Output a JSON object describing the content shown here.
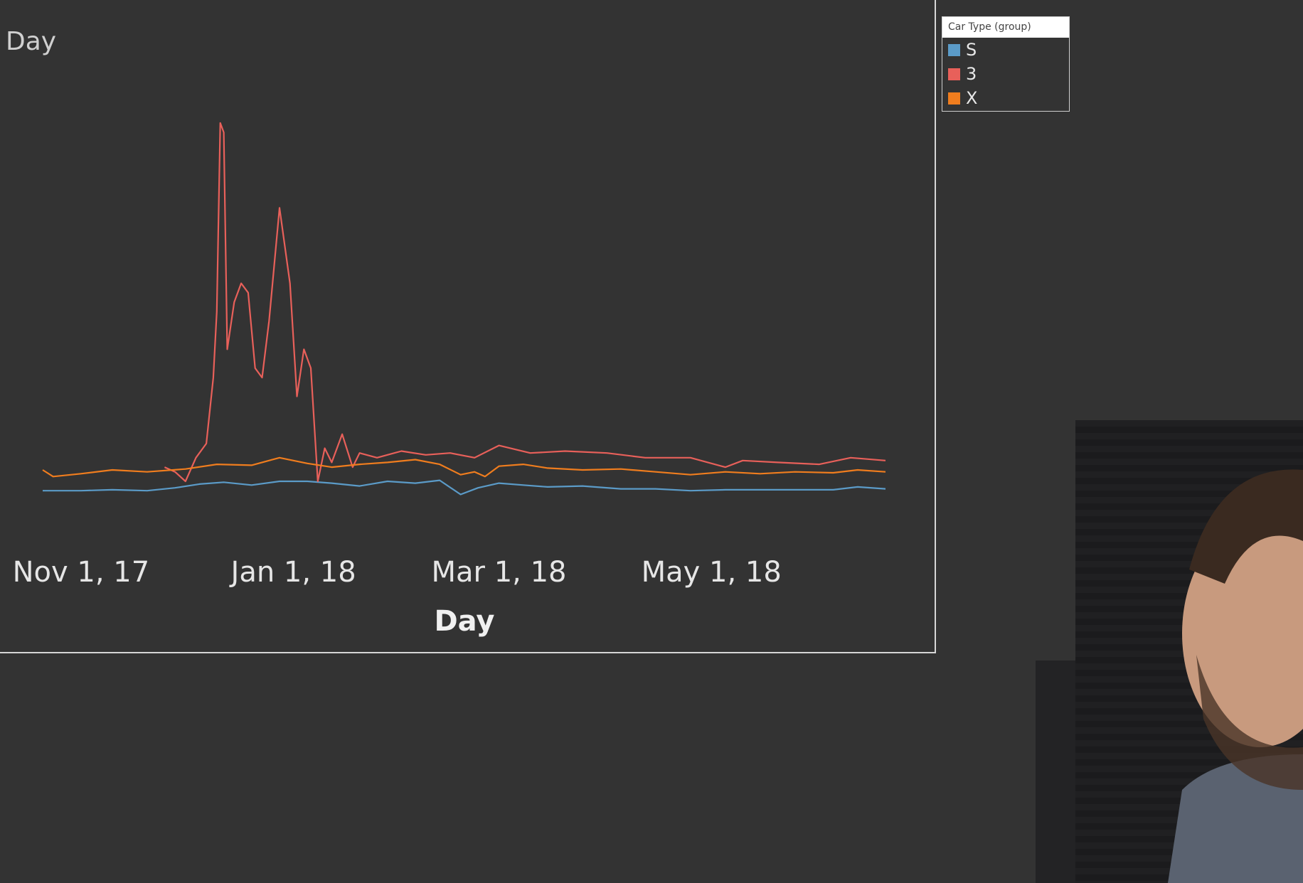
{
  "chart_data": {
    "type": "line",
    "title": "Day",
    "xlabel": "Day",
    "ylabel": "",
    "x_ticks": [
      "Nov 1, 17",
      "Jan 1, 18",
      "Mar 1, 18",
      "May 1, 18"
    ],
    "x_range": [
      "2017-10-21",
      "2018-06-20"
    ],
    "legend": {
      "title": "Car Type (group)",
      "placement": "top-right"
    },
    "grid": false,
    "series": [
      {
        "name": "S",
        "color": "#5b9bc8",
        "x": [
          "2017-10-21",
          "2017-11-01",
          "2017-11-10",
          "2017-11-20",
          "2017-11-28",
          "2017-12-05",
          "2017-12-12",
          "2017-12-20",
          "2017-12-28",
          "2018-01-05",
          "2018-01-12",
          "2018-01-20",
          "2018-01-28",
          "2018-02-05",
          "2018-02-12",
          "2018-02-18",
          "2018-02-23",
          "2018-03-01",
          "2018-03-08",
          "2018-03-15",
          "2018-03-25",
          "2018-04-05",
          "2018-04-15",
          "2018-04-25",
          "2018-05-05",
          "2018-05-15",
          "2018-05-25",
          "2018-06-05",
          "2018-06-12",
          "2018-06-20"
        ],
        "y": [
          30,
          30,
          31,
          30,
          33,
          37,
          39,
          36,
          40,
          40,
          38,
          35,
          40,
          38,
          41,
          26,
          33,
          38,
          36,
          34,
          35,
          32,
          32,
          30,
          31,
          31,
          31,
          31,
          34,
          32
        ]
      },
      {
        "name": "3",
        "color": "#e8605a",
        "x": [
          "2017-11-25",
          "2017-11-28",
          "2017-12-01",
          "2017-12-04",
          "2017-12-07",
          "2017-12-09",
          "2017-12-10",
          "2017-12-11",
          "2017-12-12",
          "2017-12-13",
          "2017-12-15",
          "2017-12-17",
          "2017-12-19",
          "2017-12-21",
          "2017-12-23",
          "2017-12-25",
          "2017-12-28",
          "2017-12-31",
          "2018-01-02",
          "2018-01-04",
          "2018-01-06",
          "2018-01-08",
          "2018-01-10",
          "2018-01-12",
          "2018-01-15",
          "2018-01-18",
          "2018-01-20",
          "2018-01-25",
          "2018-02-01",
          "2018-02-08",
          "2018-02-15",
          "2018-02-22",
          "2018-03-01",
          "2018-03-10",
          "2018-03-20",
          "2018-04-01",
          "2018-04-12",
          "2018-04-25",
          "2018-05-05",
          "2018-05-10",
          "2018-05-20",
          "2018-06-01",
          "2018-06-10",
          "2018-06-20"
        ],
        "y": [
          55,
          50,
          40,
          65,
          80,
          150,
          220,
          420,
          410,
          180,
          230,
          250,
          240,
          160,
          150,
          210,
          330,
          250,
          130,
          180,
          160,
          40,
          75,
          60,
          90,
          55,
          70,
          65,
          72,
          68,
          70,
          65,
          78,
          70,
          72,
          70,
          65,
          65,
          55,
          62,
          60,
          58,
          65,
          62
        ]
      },
      {
        "name": "X",
        "color": "#f07d1e",
        "x": [
          "2017-10-21",
          "2017-10-24",
          "2017-11-01",
          "2017-11-10",
          "2017-11-20",
          "2017-12-01",
          "2017-12-10",
          "2017-12-20",
          "2017-12-28",
          "2018-01-05",
          "2018-01-12",
          "2018-01-20",
          "2018-01-28",
          "2018-02-05",
          "2018-02-12",
          "2018-02-18",
          "2018-02-22",
          "2018-02-25",
          "2018-03-01",
          "2018-03-08",
          "2018-03-15",
          "2018-03-25",
          "2018-04-05",
          "2018-04-15",
          "2018-04-25",
          "2018-05-05",
          "2018-05-15",
          "2018-05-25",
          "2018-06-05",
          "2018-06-12",
          "2018-06-20"
        ],
        "y": [
          52,
          45,
          48,
          52,
          50,
          53,
          58,
          57,
          65,
          59,
          55,
          58,
          60,
          63,
          58,
          47,
          50,
          45,
          56,
          58,
          54,
          52,
          53,
          50,
          47,
          50,
          48,
          50,
          49,
          52,
          50
        ]
      }
    ]
  }
}
